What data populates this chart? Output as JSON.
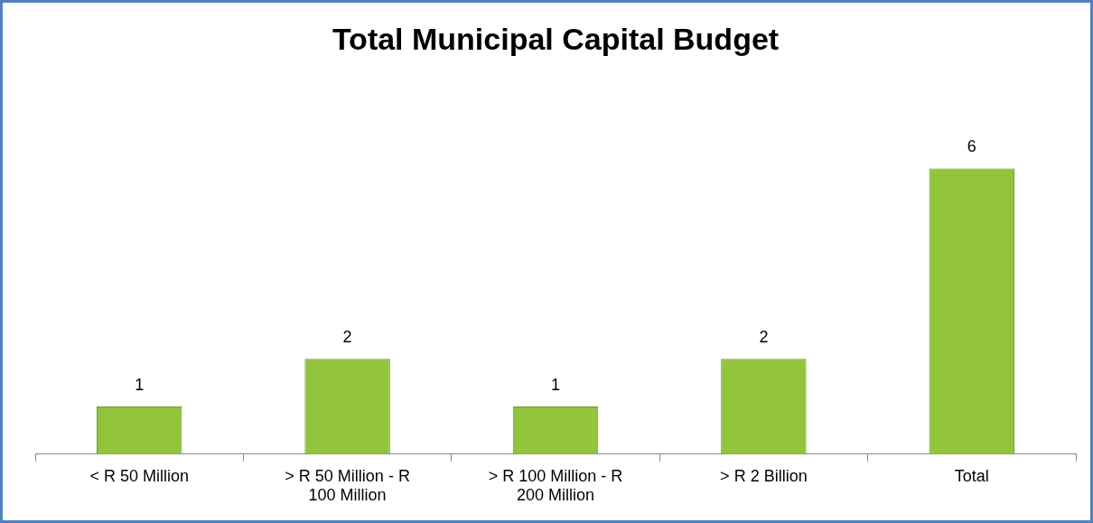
{
  "chart_data": {
    "type": "bar",
    "title": "Total Municipal Capital Budget",
    "categories": [
      "< R 50 Million",
      "> R 50 Million - R 100 Million",
      "> R 100 Million - R 200 Million",
      "> R 2 Billion",
      "Total"
    ],
    "values": [
      1,
      2,
      1,
      2,
      6
    ],
    "color": "#92c43c",
    "data_labels": true,
    "tick_labels": "x",
    "legend": false
  }
}
